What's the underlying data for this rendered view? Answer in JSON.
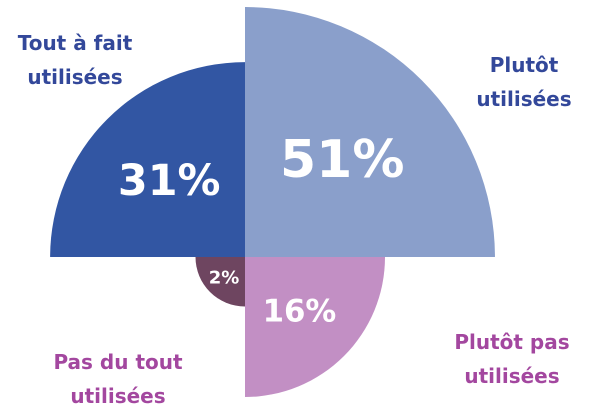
{
  "chart_data": {
    "type": "polar_area",
    "categories": [
      "Tout à fait utilisées",
      "Plutôt utilisées",
      "Plutôt pas utilisées",
      "Pas du tout utilisées"
    ],
    "values": [
      31,
      51,
      16,
      2
    ],
    "value_labels": [
      "31%",
      "51%",
      "16%",
      "2%"
    ],
    "colors": [
      "#3256a3",
      "#8a9fcb",
      "#c28fc4",
      "#6e4560"
    ],
    "label_colors": [
      "#33489a",
      "#33489a",
      "#a3479f",
      "#a3479f"
    ]
  }
}
